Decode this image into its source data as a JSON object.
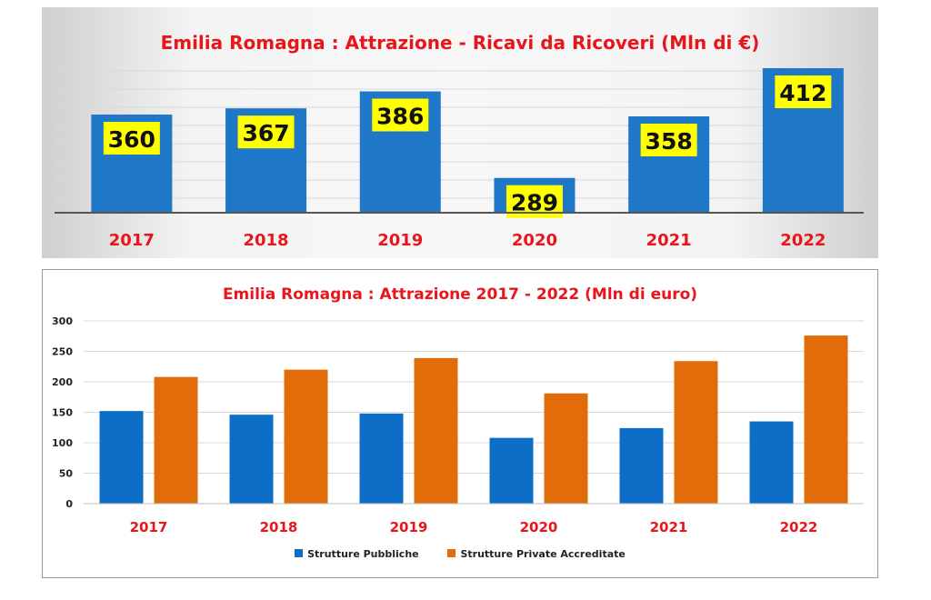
{
  "chart_data": [
    {
      "type": "bar",
      "title": "Emilia Romagna : Attrazione - Ricavi da Ricoveri  (Mln di €)",
      "categories": [
        "2017",
        "2018",
        "2019",
        "2020",
        "2021",
        "2022"
      ],
      "values": [
        360,
        367,
        386,
        289,
        358,
        412
      ],
      "data_labels": [
        "360",
        "367",
        "386",
        "289",
        "358",
        "412"
      ],
      "grid": true,
      "legend": "none",
      "colors": {
        "bar": "#1f77c7",
        "label_bg": "#ffff00",
        "category": "#e8161b"
      }
    },
    {
      "type": "bar",
      "title": "Emilia Romagna : Attrazione 2017 - 2022 (Mln di euro)",
      "categories": [
        "2017",
        "2018",
        "2019",
        "2020",
        "2021",
        "2022"
      ],
      "series": [
        {
          "name": "Strutture Pubbliche",
          "values": [
            152,
            146,
            148,
            108,
            124,
            135
          ],
          "color": "#0d6ec7"
        },
        {
          "name": "Strutture Private Accreditate",
          "values": [
            208,
            220,
            239,
            181,
            234,
            276
          ],
          "color": "#e36c0a"
        }
      ],
      "ylim": [
        0,
        300
      ],
      "yticks": [
        "0",
        "50",
        "100",
        "150",
        "200",
        "250",
        "300"
      ],
      "grid": true,
      "legend": "bottom-center",
      "colors": {
        "category": "#e8161b"
      }
    }
  ]
}
